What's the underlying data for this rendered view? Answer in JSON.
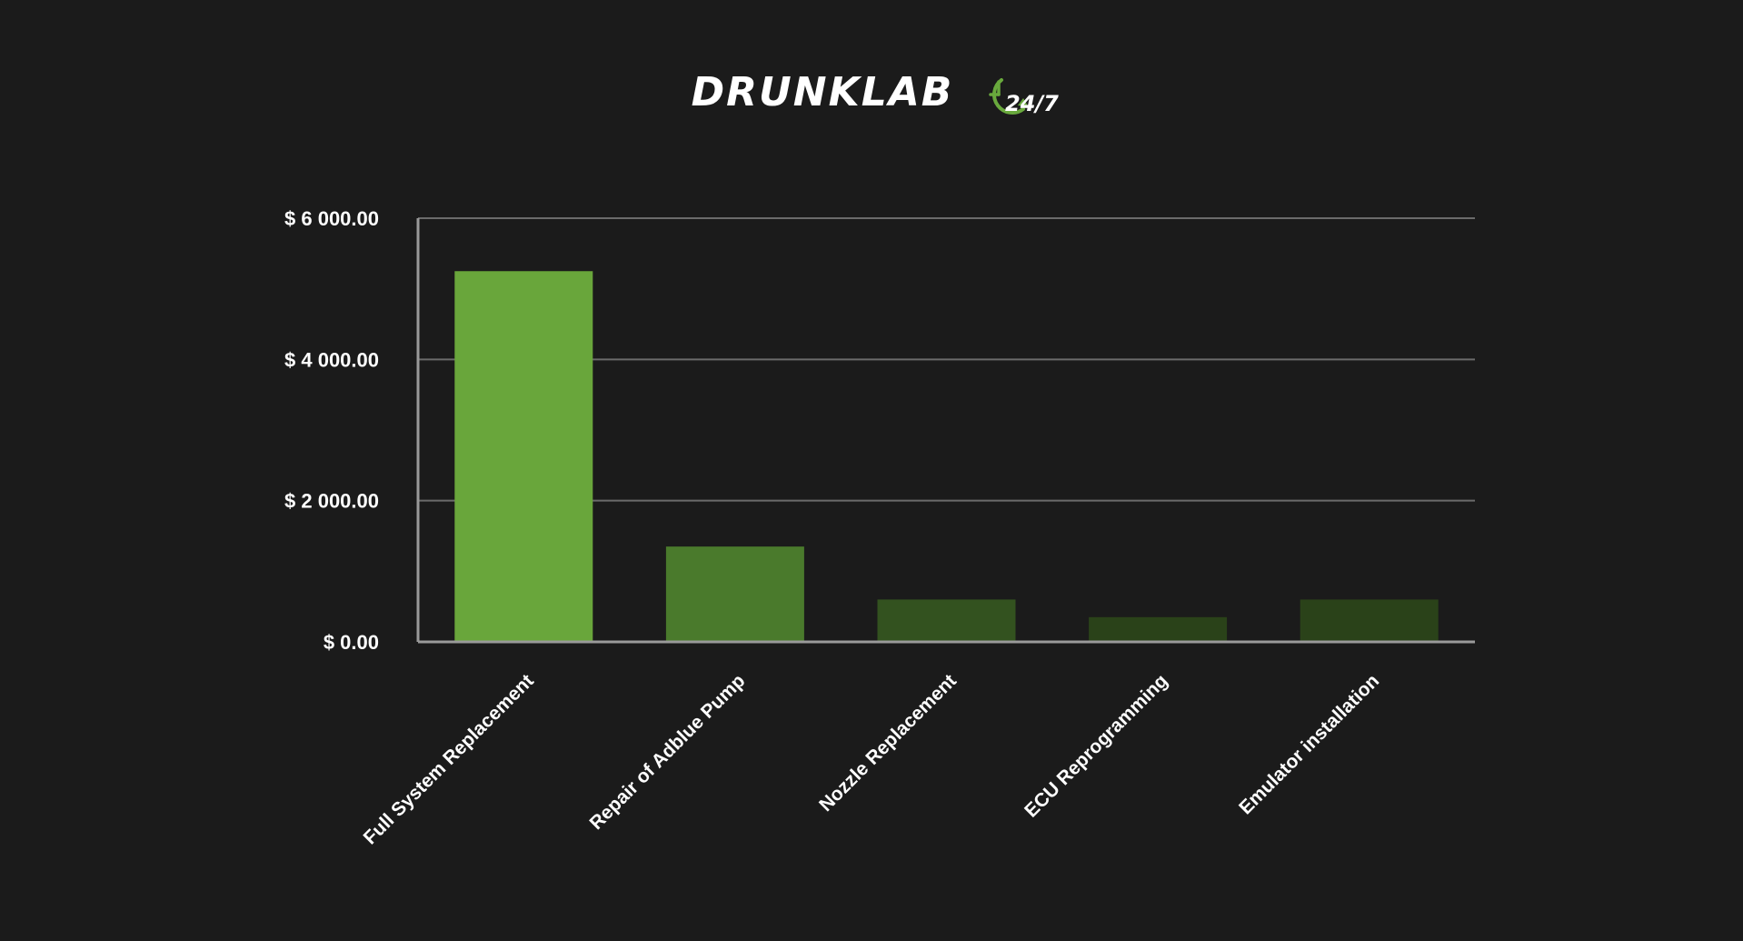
{
  "brand": {
    "name": "DRUNKLAB",
    "badge": "24/7",
    "accent_color": "#69a93d",
    "icon": "clock-arrow-icon"
  },
  "chart_data": {
    "type": "bar",
    "categories": [
      "Full System Replacement",
      "Repair of Adblue Pump",
      "Nozzle Replacement",
      "ECU Reprogramming",
      "Emulator installation"
    ],
    "values": [
      5250,
      1350,
      600,
      350,
      600
    ],
    "bar_colors": [
      "#69a63b",
      "#4a7a2c",
      "#33521f",
      "#2a4219",
      "#2a4219"
    ],
    "yticks": [
      0,
      2000,
      4000,
      6000
    ],
    "ytick_labels": [
      "$ 0.00",
      "$ 2 000.00",
      "$ 4 000.00",
      "$ 6 000.00"
    ],
    "ylim": [
      0,
      6000
    ],
    "grid": true,
    "title": "",
    "xlabel": "",
    "ylabel": ""
  }
}
